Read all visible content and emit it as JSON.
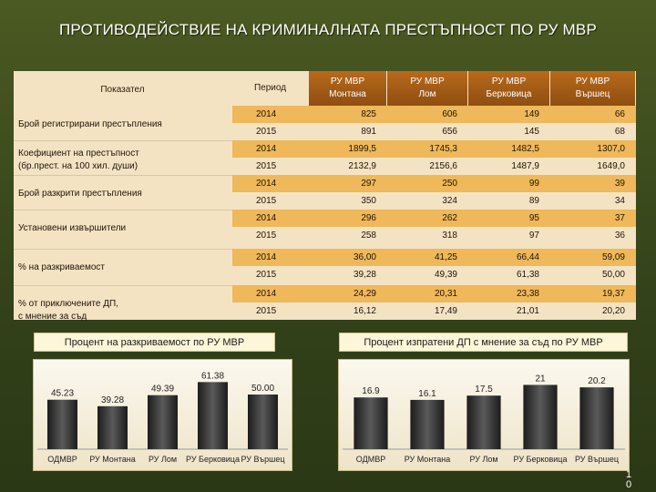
{
  "slide": {
    "title": "ПРОТИВОДЕЙСТВИЕ НА КРИМИНАЛНАТА ПРЕСТЪПНОСТ ПО РУ МВР",
    "page_number": "1\n0"
  },
  "table": {
    "headers": {
      "indicator": "Показател",
      "period": "Период",
      "col1": "РУ МВР\nМонтана",
      "col2": "РУ МВР\nЛом",
      "col3": "РУ МВР\nБерковица",
      "col4": "РУ МВР\nВършец"
    },
    "groups": [
      {
        "label": "Брой регистрирани престъпления",
        "rows": [
          {
            "year": "2014",
            "values": [
              "825",
              "606",
              "149",
              "66"
            ]
          },
          {
            "year": "2015",
            "values": [
              "891",
              "656",
              "145",
              "68"
            ]
          }
        ]
      },
      {
        "label": "Коефициент на престъпност\n(бр.прест. на 100 хил. души)",
        "rows": [
          {
            "year": "2014",
            "values": [
              "1899,5",
              "1745,3",
              "1482,5",
              "1307,0"
            ]
          },
          {
            "year": "2015",
            "values": [
              "2132,9",
              "2156,6",
              "1487,9",
              "1649,0"
            ]
          }
        ]
      },
      {
        "label": "Брой разкрити престъпления",
        "rows": [
          {
            "year": "2014",
            "values": [
              "297",
              "250",
              "99",
              "39"
            ]
          },
          {
            "year": "2015",
            "values": [
              "350",
              "324",
              "89",
              "34"
            ]
          }
        ]
      },
      {
        "label": "Установени извършители",
        "rows": [
          {
            "year": "2014",
            "values": [
              "296",
              "262",
              "95",
              "37"
            ]
          },
          {
            "year": "2015",
            "values": [
              "258",
              "318",
              "97",
              "36"
            ]
          }
        ]
      },
      {
        "label": "% на разкриваемост",
        "rows": [
          {
            "year": "2014",
            "values": [
              "36,00",
              "41,25",
              "66,44",
              "59,09"
            ]
          },
          {
            "year": "2015",
            "values": [
              "39,28",
              "49,39",
              "61,38",
              "50,00"
            ]
          }
        ]
      },
      {
        "label": "% от приключените ДП,\nс мнение за съд",
        "rows": [
          {
            "year": "2014",
            "values": [
              "24,29",
              "20,31",
              "23,38",
              "19,37"
            ]
          },
          {
            "year": "2015",
            "values": [
              "16,12",
              "17,49",
              "21,01",
              "20,20"
            ]
          }
        ]
      }
    ]
  },
  "chart_data": [
    {
      "type": "bar",
      "title": "Процент на разкриваемост по РУ МВР",
      "categories": [
        "ОДМВР",
        "РУ Монтана",
        "РУ Лом",
        "РУ Берковица",
        "РУ Вършец"
      ],
      "values": [
        45.23,
        39.28,
        49.39,
        61.38,
        50.0
      ],
      "labels": [
        "45.23",
        "39.28",
        "49.39",
        "61.38",
        "50.00"
      ],
      "ylim": [
        0,
        70
      ],
      "grid": false,
      "color": "#2e2e2e"
    },
    {
      "type": "bar",
      "title": "Процент изпратени ДП с мнение за съд по РУ МВР",
      "categories": [
        "ОДМВР",
        "РУ Монтана",
        "РУ Лом",
        "РУ Берковица",
        "РУ Вършец"
      ],
      "values": [
        16.9,
        16.1,
        17.5,
        21,
        20.2
      ],
      "labels": [
        "16.9",
        "16.1",
        "17.5",
        "21",
        "20.2"
      ],
      "ylim": [
        0,
        25
      ],
      "grid": false,
      "color": "#2e2e2e"
    }
  ]
}
